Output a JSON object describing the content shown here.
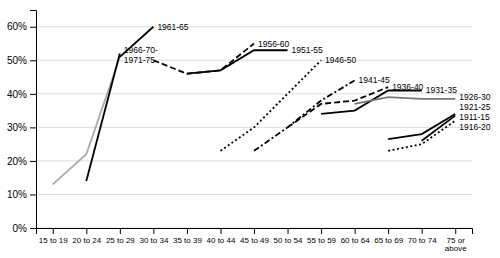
{
  "chart_data": {
    "type": "line",
    "categories": [
      "15 to 19",
      "20 to 24",
      "25 to 29",
      "30 to 34",
      "35 to 39",
      "40 to 44",
      "45 to 49",
      "50 to 54",
      "55 to 59",
      "60 to 64",
      "65 to 69",
      "70 to 74",
      "75 or\nabove"
    ],
    "series": [
      {
        "name": "1971-75",
        "color": "#aaaaaa",
        "line_style": "solid",
        "values": [
          0.13,
          0.22,
          0.51,
          null,
          null,
          null,
          null,
          null,
          null,
          null,
          null,
          null,
          null
        ]
      },
      {
        "name": "1966-70-",
        "color": "#000000",
        "line_style": "solid",
        "values": [
          null,
          0.14,
          0.52,
          null,
          null,
          null,
          null,
          null,
          null,
          null,
          null,
          null,
          null
        ]
      },
      {
        "name": "1961-65",
        "color": "#000000",
        "line_style": "solid",
        "values": [
          null,
          null,
          0.51,
          0.6,
          null,
          null,
          null,
          null,
          null,
          null,
          null,
          null,
          null
        ]
      },
      {
        "name": "1956-60",
        "color": "#000000",
        "line_style": "dashed",
        "values": [
          null,
          null,
          null,
          0.5,
          0.46,
          0.47,
          0.55,
          null,
          null,
          null,
          null,
          null,
          null
        ]
      },
      {
        "name": "1951-55",
        "color": "#000000",
        "line_style": "solid",
        "values": [
          null,
          null,
          null,
          null,
          0.46,
          0.47,
          0.53,
          0.53,
          null,
          null,
          null,
          null,
          null
        ]
      },
      {
        "name": "1946-50",
        "color": "#000000",
        "line_style": "dotted",
        "values": [
          null,
          null,
          null,
          null,
          null,
          0.23,
          0.3,
          0.4,
          0.5,
          null,
          null,
          null,
          null
        ]
      },
      {
        "name": "1941-45",
        "color": "#000000",
        "line_style": "dashdot",
        "values": [
          null,
          null,
          null,
          null,
          null,
          null,
          0.23,
          0.3,
          0.38,
          0.44,
          null,
          null,
          null
        ]
      },
      {
        "name": "1936-40",
        "color": "#000000",
        "line_style": "dashed",
        "values": [
          null,
          null,
          null,
          null,
          null,
          null,
          null,
          0.3,
          0.37,
          0.38,
          0.42,
          null,
          null
        ]
      },
      {
        "name": "1931-35",
        "color": "#000000",
        "line_style": "solid",
        "values": [
          null,
          null,
          null,
          null,
          null,
          null,
          null,
          null,
          0.34,
          0.35,
          0.41,
          0.41,
          null
        ]
      },
      {
        "name": "1926-30",
        "color": "#777777",
        "line_style": "solid",
        "values": [
          null,
          null,
          null,
          null,
          null,
          null,
          null,
          null,
          null,
          0.37,
          0.39,
          0.385,
          0.385
        ]
      },
      {
        "name": "1921-25",
        "color": "#000000",
        "line_style": "solid",
        "values": [
          null,
          null,
          null,
          null,
          null,
          null,
          null,
          null,
          null,
          null,
          0.265,
          0.28,
          0.34
        ]
      },
      {
        "name": "1916-20",
        "color": "#000000",
        "line_style": "dotted",
        "values": [
          null,
          null,
          null,
          null,
          null,
          null,
          null,
          null,
          null,
          null,
          0.23,
          0.25,
          0.32
        ]
      },
      {
        "name": "1911-15",
        "color": "#000000",
        "line_style": "solid",
        "values": [
          null,
          null,
          null,
          null,
          null,
          null,
          null,
          null,
          null,
          null,
          null,
          0.26,
          0.335
        ]
      }
    ],
    "ylim": [
      0.0,
      0.65
    ],
    "yticks": [
      {
        "value": 0.0,
        "label": "0%"
      },
      {
        "value": 0.1,
        "label": "10%"
      },
      {
        "value": 0.2,
        "label": "20%"
      },
      {
        "value": 0.3,
        "label": "30%"
      },
      {
        "value": 0.4,
        "label": "40%"
      },
      {
        "value": 0.5,
        "label": "50%"
      },
      {
        "value": 0.6,
        "label": "60%"
      }
    ],
    "grid": true
  }
}
